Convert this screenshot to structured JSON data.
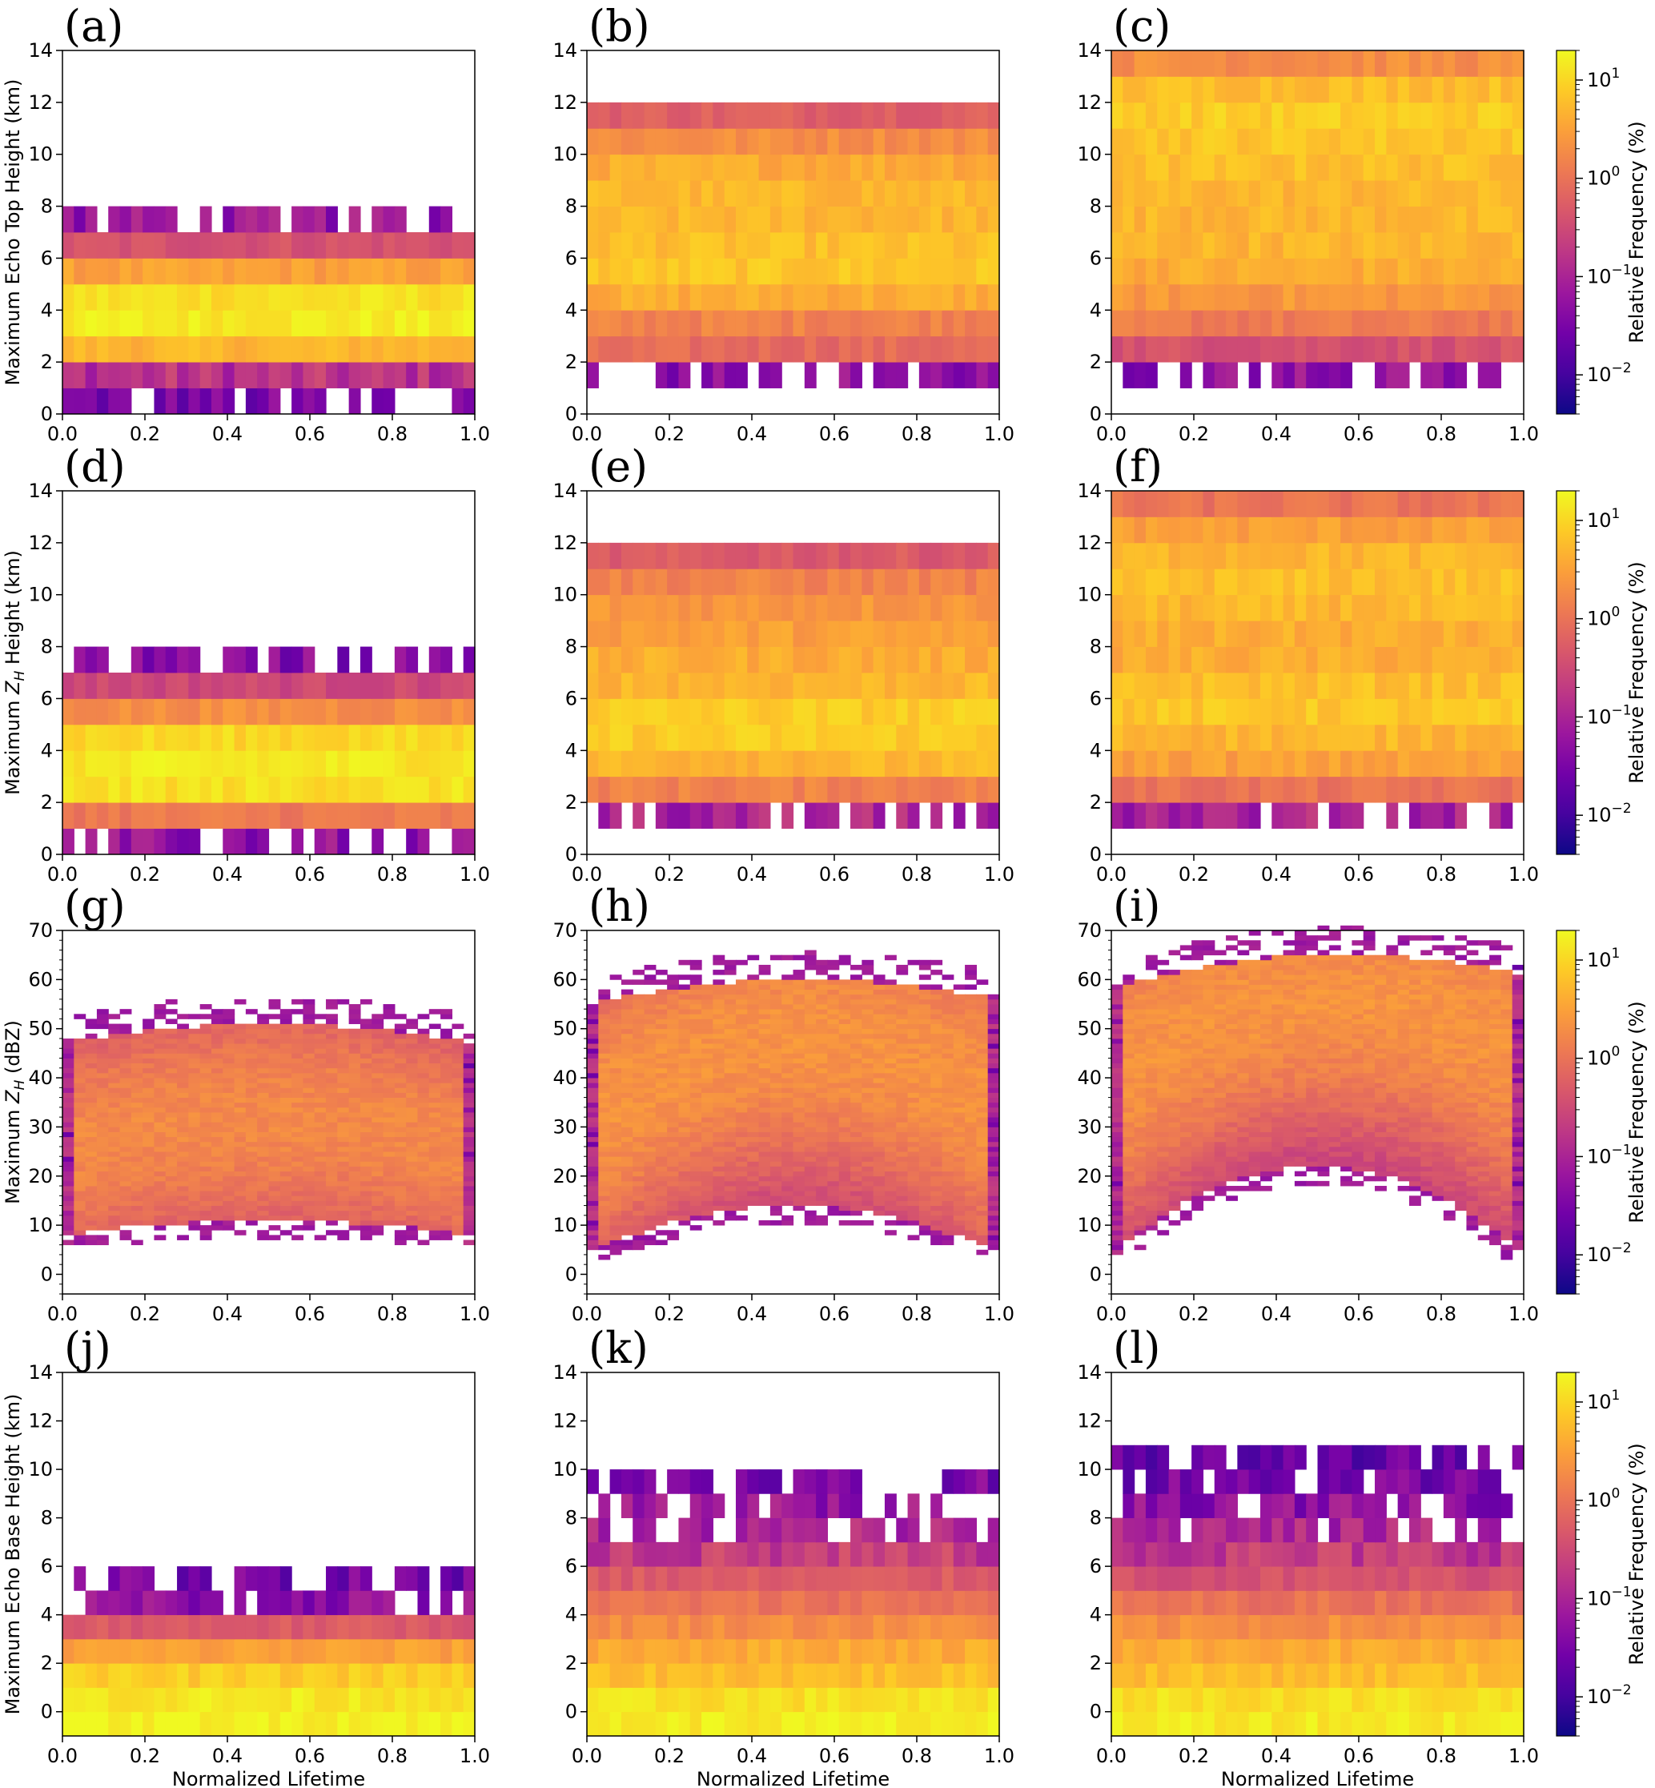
{
  "figure": {
    "colormap": [
      "#0d0887",
      "#46039f",
      "#7201a8",
      "#9c179e",
      "#bd3786",
      "#d8576b",
      "#ed7953",
      "#fb9f3a",
      "#fdca26",
      "#f0f921"
    ],
    "colorbar": {
      "label": "Relative Frequency (%)",
      "scale": "log",
      "range": [
        0.004,
        20
      ],
      "ticks": [
        {
          "base": "10",
          "exp": "1",
          "value": 10
        },
        {
          "base": "10",
          "exp": "0",
          "value": 1
        },
        {
          "base": "10",
          "exp": "−1",
          "value": 0.1
        },
        {
          "base": "10",
          "exp": "−2",
          "value": 0.01
        }
      ]
    },
    "xlabel": "Normalized Lifetime",
    "row_ylabels": [
      "Maximum Echo Top Height (km)",
      "Maximum Z_H Height (km)",
      "Maximum Z_H (dBZ)",
      "Maximum Echo Base Height (km)"
    ],
    "ylabel_parts": [
      {
        "pre": "Maximum Echo Top Height (km)",
        "var": "",
        "sub": "",
        "post": ""
      },
      {
        "pre": "Maximum ",
        "var": "Z",
        "sub": "H",
        "post": " Height (km)"
      },
      {
        "pre": "Maximum ",
        "var": "Z",
        "sub": "H",
        "post": " (dBZ)"
      },
      {
        "pre": "Maximum Echo Base Height (km)",
        "var": "",
        "sub": "",
        "post": ""
      }
    ]
  },
  "chart_data": [
    {
      "panel": "(a)",
      "type": "heatmap",
      "xlabel": "",
      "ylabel": "Maximum Echo Top Height (km)",
      "xlim": [
        0,
        1
      ],
      "ylim": [
        0,
        14
      ],
      "x_ticks": [
        "0.0",
        "0.2",
        "0.4",
        "0.6",
        "0.8",
        "1.0"
      ],
      "y_ticks": [
        "0",
        "2",
        "4",
        "6",
        "8",
        "10",
        "12",
        "14"
      ],
      "bin_height": 1,
      "rows": [
        [
          0,
          1,
          0.03
        ],
        [
          1,
          2,
          0.15
        ],
        [
          2,
          3,
          5
        ],
        [
          3,
          4,
          15
        ],
        [
          4,
          5,
          12
        ],
        [
          5,
          6,
          3
        ],
        [
          6,
          7,
          0.4
        ],
        [
          7,
          8,
          0.06
        ]
      ]
    },
    {
      "panel": "(b)",
      "type": "heatmap",
      "xlabel": "",
      "ylabel": "",
      "xlim": [
        0,
        1
      ],
      "ylim": [
        0,
        14
      ],
      "x_ticks": [
        "0.0",
        "0.2",
        "0.4",
        "0.6",
        "0.8",
        "1.0"
      ],
      "y_ticks": [
        "0",
        "2",
        "4",
        "6",
        "8",
        "10",
        "12",
        "14"
      ],
      "bin_height": 1,
      "rows": [
        [
          1,
          2,
          0.05
        ],
        [
          2,
          3,
          0.8
        ],
        [
          3,
          4,
          1.5
        ],
        [
          4,
          5,
          4
        ],
        [
          5,
          6,
          7
        ],
        [
          6,
          7,
          6
        ],
        [
          7,
          8,
          5
        ],
        [
          8,
          9,
          5
        ],
        [
          9,
          10,
          4
        ],
        [
          10,
          11,
          2
        ],
        [
          11,
          12,
          0.6
        ]
      ]
    },
    {
      "panel": "(c)",
      "type": "heatmap",
      "xlabel": "",
      "ylabel": "",
      "xlim": [
        0,
        1
      ],
      "ylim": [
        0,
        14
      ],
      "x_ticks": [
        "0.0",
        "0.2",
        "0.4",
        "0.6",
        "0.8",
        "1.0"
      ],
      "y_ticks": [
        "0",
        "2",
        "4",
        "6",
        "8",
        "10",
        "12",
        "14"
      ],
      "bin_height": 1,
      "rows": [
        [
          1,
          2,
          0.05
        ],
        [
          2,
          3,
          0.4
        ],
        [
          3,
          4,
          1.2
        ],
        [
          4,
          5,
          2.5
        ],
        [
          5,
          6,
          4
        ],
        [
          6,
          7,
          5
        ],
        [
          7,
          8,
          5
        ],
        [
          8,
          9,
          5
        ],
        [
          9,
          10,
          6
        ],
        [
          10,
          11,
          7
        ],
        [
          11,
          12,
          8
        ],
        [
          12,
          13,
          6
        ],
        [
          13,
          14,
          2
        ]
      ]
    },
    {
      "panel": "(d)",
      "type": "heatmap",
      "xlabel": "",
      "ylabel": "Maximum Z_H Height (km)",
      "xlim": [
        0,
        1
      ],
      "ylim": [
        0,
        14
      ],
      "x_ticks": [
        "0.0",
        "0.2",
        "0.4",
        "0.6",
        "0.8",
        "1.0"
      ],
      "y_ticks": [
        "0",
        "2",
        "4",
        "6",
        "8",
        "10",
        "12",
        "14"
      ],
      "bin_height": 1,
      "rows": [
        [
          0,
          1,
          0.05
        ],
        [
          1,
          2,
          1.2
        ],
        [
          2,
          3,
          12
        ],
        [
          3,
          4,
          14
        ],
        [
          4,
          5,
          10
        ],
        [
          5,
          6,
          2
        ],
        [
          6,
          7,
          0.3
        ],
        [
          7,
          8,
          0.04
        ]
      ]
    },
    {
      "panel": "(e)",
      "type": "heatmap",
      "xlabel": "",
      "ylabel": "",
      "xlim": [
        0,
        1
      ],
      "ylim": [
        0,
        14
      ],
      "x_ticks": [
        "0.0",
        "0.2",
        "0.4",
        "0.6",
        "0.8",
        "1.0"
      ],
      "y_ticks": [
        "0",
        "2",
        "4",
        "6",
        "8",
        "10",
        "12",
        "14"
      ],
      "bin_height": 1,
      "rows": [
        [
          1,
          2,
          0.1
        ],
        [
          2,
          3,
          1.5
        ],
        [
          3,
          4,
          5
        ],
        [
          4,
          5,
          8
        ],
        [
          5,
          6,
          8
        ],
        [
          6,
          7,
          5
        ],
        [
          7,
          8,
          4
        ],
        [
          8,
          9,
          3
        ],
        [
          9,
          10,
          2.5
        ],
        [
          10,
          11,
          1.5
        ],
        [
          11,
          12,
          0.5
        ]
      ]
    },
    {
      "panel": "(f)",
      "type": "heatmap",
      "xlabel": "",
      "ylabel": "",
      "xlim": [
        0,
        1
      ],
      "ylim": [
        0,
        14
      ],
      "x_ticks": [
        "0.0",
        "0.2",
        "0.4",
        "0.6",
        "0.8",
        "1.0"
      ],
      "y_ticks": [
        "0",
        "2",
        "4",
        "6",
        "8",
        "10",
        "12",
        "14"
      ],
      "bin_height": 1,
      "rows": [
        [
          1,
          2,
          0.1
        ],
        [
          2,
          3,
          1
        ],
        [
          3,
          4,
          3
        ],
        [
          4,
          5,
          5
        ],
        [
          5,
          6,
          7
        ],
        [
          6,
          7,
          6
        ],
        [
          7,
          8,
          4
        ],
        [
          8,
          9,
          4
        ],
        [
          9,
          10,
          5
        ],
        [
          10,
          11,
          6
        ],
        [
          11,
          12,
          5
        ],
        [
          12,
          13,
          3
        ],
        [
          13,
          14,
          1
        ]
      ]
    },
    {
      "panel": "(g)",
      "type": "heatmap",
      "xlabel": "",
      "ylabel": "Maximum Z_H (dBZ)",
      "xlim": [
        0,
        1
      ],
      "ylim": [
        -4,
        70
      ],
      "x_ticks": [
        "0.0",
        "0.2",
        "0.4",
        "0.6",
        "0.8",
        "1.0"
      ],
      "y_ticks": [
        "0",
        "10",
        "20",
        "30",
        "40",
        "50",
        "60",
        "70"
      ],
      "bin_height": 1,
      "profile": {
        "low": [
          8,
          11,
          8
        ],
        "high": [
          47,
          51,
          47
        ],
        "peak": [
          25,
          32,
          25
        ],
        "strength": 1.0
      }
    },
    {
      "panel": "(h)",
      "type": "heatmap",
      "xlabel": "",
      "ylabel": "",
      "xlim": [
        0,
        1
      ],
      "ylim": [
        -4,
        70
      ],
      "x_ticks": [
        "0.0",
        "0.2",
        "0.4",
        "0.6",
        "0.8",
        "1.0"
      ],
      "y_ticks": [
        "0",
        "10",
        "20",
        "30",
        "40",
        "50",
        "60",
        "70"
      ],
      "bin_height": 1,
      "profile": {
        "low": [
          4,
          14,
          4
        ],
        "high": [
          55,
          60,
          56
        ],
        "peak": [
          30,
          48,
          33
        ],
        "strength": 1.3
      }
    },
    {
      "panel": "(i)",
      "type": "heatmap",
      "xlabel": "",
      "ylabel": "",
      "xlim": [
        0,
        1
      ],
      "ylim": [
        -4,
        70
      ],
      "x_ticks": [
        "0.0",
        "0.2",
        "0.4",
        "0.6",
        "0.8",
        "1.0"
      ],
      "y_ticks": [
        "0",
        "10",
        "20",
        "30",
        "40",
        "50",
        "60",
        "70"
      ],
      "bin_height": 1,
      "profile": {
        "low": [
          4,
          22,
          4
        ],
        "high": [
          58,
          65,
          61
        ],
        "peak": [
          40,
          56,
          45
        ],
        "strength": 1.3
      }
    },
    {
      "panel": "(j)",
      "type": "heatmap",
      "xlabel": "Normalized Lifetime",
      "ylabel": "Maximum Echo Base Height (km)",
      "xlim": [
        0,
        1
      ],
      "ylim": [
        -1,
        14
      ],
      "x_ticks": [
        "0.0",
        "0.2",
        "0.4",
        "0.6",
        "0.8",
        "1.0"
      ],
      "y_ticks": [
        "0",
        "2",
        "4",
        "6",
        "8",
        "10",
        "12",
        "14"
      ],
      "bin_height": 1,
      "rows": [
        [
          -1,
          0,
          18
        ],
        [
          0,
          1,
          14
        ],
        [
          1,
          2,
          8
        ],
        [
          2,
          3,
          3
        ],
        [
          3,
          4,
          0.5
        ],
        [
          4,
          5,
          0.05
        ],
        [
          5,
          6,
          0.03
        ]
      ]
    },
    {
      "panel": "(k)",
      "type": "heatmap",
      "xlabel": "Normalized Lifetime",
      "ylabel": "",
      "xlim": [
        0,
        1
      ],
      "ylim": [
        -1,
        14
      ],
      "x_ticks": [
        "0.0",
        "0.2",
        "0.4",
        "0.6",
        "0.8",
        "1.0"
      ],
      "y_ticks": [
        "0",
        "2",
        "4",
        "6",
        "8",
        "10",
        "12",
        "14"
      ],
      "bin_height": 1,
      "rows": [
        [
          -1,
          0,
          15
        ],
        [
          0,
          1,
          12
        ],
        [
          1,
          2,
          6
        ],
        [
          2,
          3,
          4
        ],
        [
          3,
          4,
          2
        ],
        [
          4,
          5,
          1
        ],
        [
          5,
          6,
          0.5
        ],
        [
          6,
          7,
          0.2
        ],
        [
          7,
          8,
          0.1
        ],
        [
          8,
          9,
          0.06
        ],
        [
          9,
          10,
          0.03
        ]
      ]
    },
    {
      "panel": "(l)",
      "type": "heatmap",
      "xlabel": "Normalized Lifetime",
      "ylabel": "",
      "xlim": [
        0,
        1
      ],
      "ylim": [
        -1,
        14
      ],
      "x_ticks": [
        "0.0",
        "0.2",
        "0.4",
        "0.6",
        "0.8",
        "1.0"
      ],
      "y_ticks": [
        "0",
        "2",
        "4",
        "6",
        "8",
        "10",
        "12",
        "14"
      ],
      "bin_height": 1,
      "rows": [
        [
          -1,
          0,
          15
        ],
        [
          0,
          1,
          12
        ],
        [
          1,
          2,
          6
        ],
        [
          2,
          3,
          4
        ],
        [
          3,
          4,
          2
        ],
        [
          4,
          5,
          1
        ],
        [
          5,
          6,
          0.4
        ],
        [
          6,
          7,
          0.2
        ],
        [
          7,
          8,
          0.1
        ],
        [
          8,
          9,
          0.05
        ],
        [
          9,
          10,
          0.03
        ],
        [
          10,
          11,
          0.02
        ]
      ]
    }
  ]
}
